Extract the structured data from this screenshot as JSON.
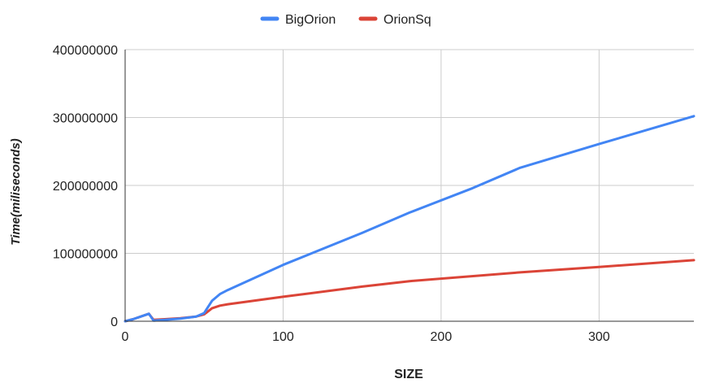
{
  "chart_data": {
    "type": "line",
    "title": "",
    "xlabel": "SIZE",
    "ylabel": "Time(miliseconds)",
    "xlim": [
      0,
      360
    ],
    "ylim": [
      0,
      400000000
    ],
    "x_ticks": [
      0,
      100,
      200,
      300
    ],
    "x_tick_labels": [
      "0",
      "100",
      "200",
      "300"
    ],
    "y_ticks": [
      0,
      100000000,
      200000000,
      300000000,
      400000000
    ],
    "y_tick_labels": [
      "0",
      "100000000",
      "200000000",
      "300000000",
      "400000000"
    ],
    "grid": true,
    "legend_position": "top",
    "series": [
      {
        "name": "BigOrion",
        "color": "#4285f4",
        "points": [
          [
            0,
            0
          ],
          [
            5,
            3000000
          ],
          [
            10,
            7000000
          ],
          [
            15,
            11000000
          ],
          [
            18,
            1000000
          ],
          [
            25,
            2000000
          ],
          [
            35,
            4000000
          ],
          [
            45,
            7000000
          ],
          [
            50,
            12000000
          ],
          [
            55,
            30000000
          ],
          [
            60,
            40000000
          ],
          [
            65,
            46000000
          ],
          [
            100,
            83000000
          ],
          [
            150,
            130000000
          ],
          [
            180,
            160000000
          ],
          [
            220,
            196000000
          ],
          [
            250,
            226000000
          ],
          [
            300,
            261000000
          ],
          [
            360,
            302000000
          ]
        ]
      },
      {
        "name": "OrionSq",
        "color": "#db4437",
        "points": [
          [
            0,
            0
          ],
          [
            5,
            3000000
          ],
          [
            10,
            7000000
          ],
          [
            15,
            11000000
          ],
          [
            18,
            2000000
          ],
          [
            25,
            3000000
          ],
          [
            35,
            4500000
          ],
          [
            45,
            7000000
          ],
          [
            50,
            10000000
          ],
          [
            55,
            19000000
          ],
          [
            60,
            23000000
          ],
          [
            65,
            25000000
          ],
          [
            100,
            36000000
          ],
          [
            150,
            51000000
          ],
          [
            180,
            59000000
          ],
          [
            250,
            72000000
          ],
          [
            300,
            80000000
          ],
          [
            360,
            90000000
          ]
        ]
      }
    ]
  }
}
